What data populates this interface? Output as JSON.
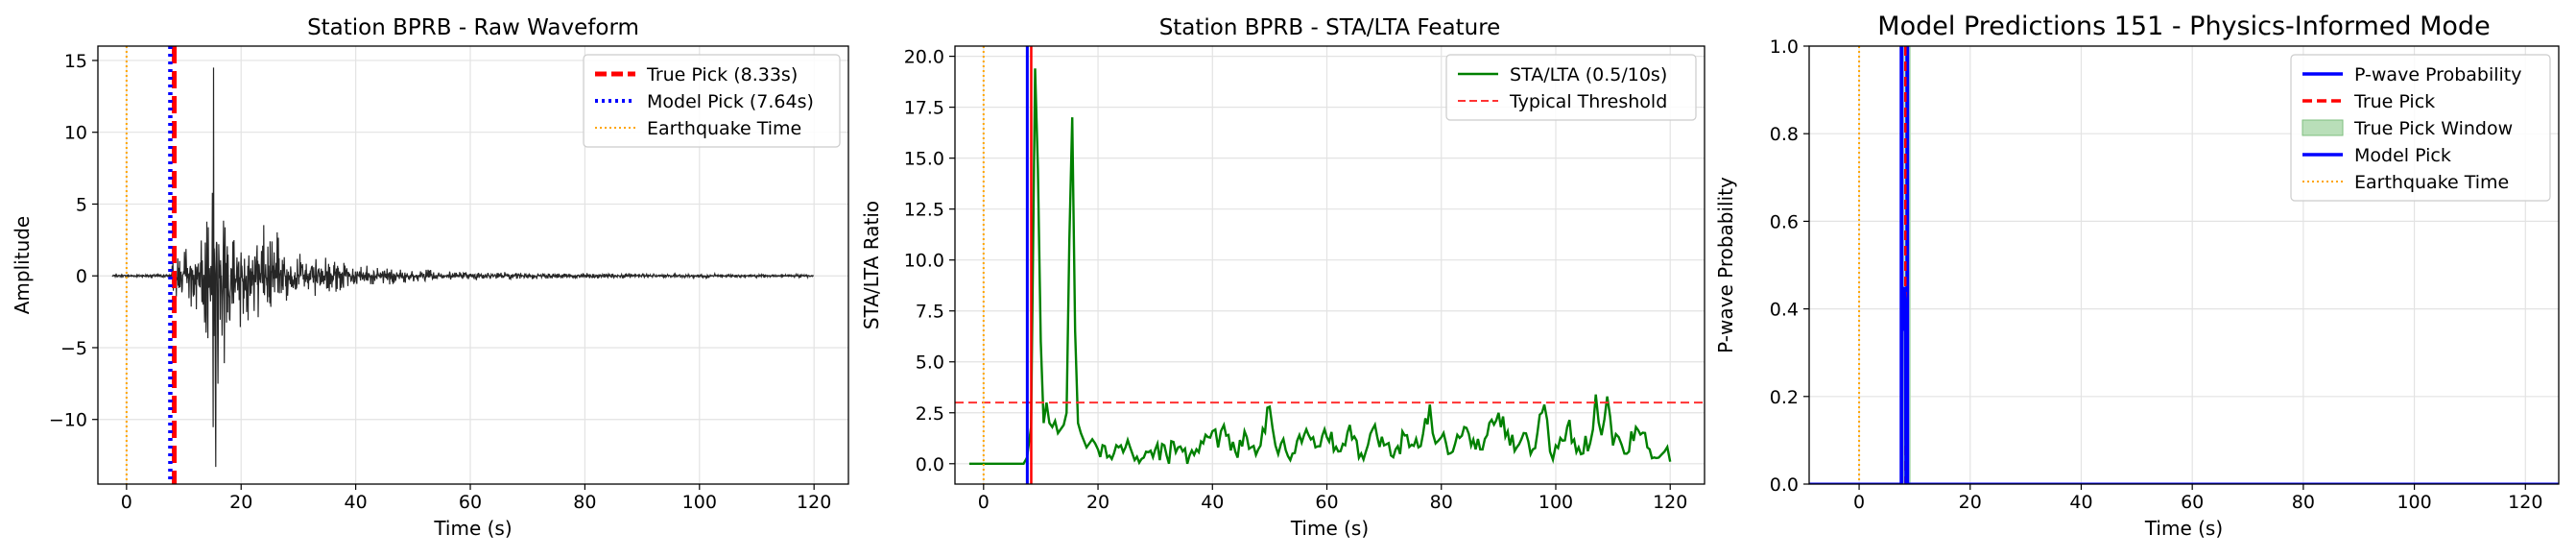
{
  "colors": {
    "waveform": "#262626",
    "true_pick": "#ff0000",
    "model_pick_dotted": "#0000ff",
    "model_pick": "#0000ff",
    "earthquake": "#ffa500",
    "sta_lta": "#008000",
    "threshold": "#ff3333",
    "pwave": "#0000ff",
    "window_fill": "#b9dfb9",
    "grid": "#e3e3e3"
  },
  "chart_data": [
    {
      "type": "line",
      "title": "Station BPRB - Raw Waveform",
      "xlabel": "Time (s)",
      "ylabel": "Amplitude",
      "xlim": [
        -5,
        126
      ],
      "ylim": [
        -14.5,
        16
      ],
      "xticks": [
        0,
        20,
        40,
        60,
        80,
        100,
        120
      ],
      "yticks": [
        -10,
        -5,
        0,
        5,
        10,
        15
      ],
      "grid": true,
      "legend_position": "top-right",
      "legend": [
        "True Pick (8.33s)",
        "Model Pick (7.64s)",
        "Earthquake Time"
      ],
      "signal_start": -2.5,
      "signal_end": 120,
      "series": [
        {
          "name": "True Pick (8.33s)",
          "kind": "vline",
          "x": 8.33
        },
        {
          "name": "Model Pick (7.64s)",
          "kind": "vline",
          "x": 7.64
        },
        {
          "name": "Earthquake Time",
          "kind": "vline",
          "x": 0
        },
        {
          "kind": "waveform",
          "envelope": [
            [
              -2.5,
              0.05
            ],
            [
              7.6,
              0.1
            ],
            [
              8.3,
              1.5
            ],
            [
              12,
              2.8
            ],
            [
              14,
              4.5
            ],
            [
              15.2,
              14.5
            ],
            [
              16,
              9
            ],
            [
              18,
              6
            ],
            [
              20,
              4.5
            ],
            [
              25,
              3.4
            ],
            [
              30,
              2.2
            ],
            [
              35,
              1.5
            ],
            [
              40,
              1.0
            ],
            [
              50,
              0.6
            ],
            [
              60,
              0.35
            ],
            [
              80,
              0.2
            ],
            [
              120,
              0.12
            ]
          ],
          "min_spike": [
            15.6,
            -13.3
          ]
        }
      ]
    },
    {
      "type": "line",
      "title": "Station BPRB - STA/LTA Feature",
      "xlabel": "Time (s)",
      "ylabel": "STA/LTA Ratio",
      "xlim": [
        -5,
        126
      ],
      "ylim": [
        -1,
        20.5
      ],
      "xticks": [
        0,
        20,
        40,
        60,
        80,
        100,
        120
      ],
      "yticks": [
        0.0,
        2.5,
        5.0,
        7.5,
        10.0,
        12.5,
        15.0,
        17.5,
        20.0
      ],
      "ytick_labels": [
        "0.0",
        "2.5",
        "5.0",
        "7.5",
        "10.0",
        "12.5",
        "15.0",
        "17.5",
        "20.0"
      ],
      "grid": true,
      "legend_position": "top-right",
      "legend": [
        "STA/LTA (0.5/10s)",
        "Typical Threshold"
      ],
      "series": [
        {
          "name": "STA/LTA (0.5/10s)",
          "x": [
            -2.5,
            7,
            7.6,
            8.3,
            9,
            9.5,
            10,
            10.5,
            11,
            11.5,
            12,
            12.5,
            13,
            14,
            14.5,
            15,
            15.5,
            16,
            16.5,
            17,
            18,
            19,
            20,
            22,
            24,
            26,
            28,
            30,
            32,
            34,
            36,
            38,
            40,
            41,
            42,
            44,
            46,
            48,
            50,
            51,
            52,
            54,
            56,
            58,
            60,
            62,
            64,
            66,
            68,
            70,
            72,
            74,
            76,
            78,
            79,
            80,
            82,
            84,
            86,
            88,
            90,
            92,
            94,
            96,
            98,
            99,
            100,
            102,
            104,
            106,
            107,
            108,
            109,
            110,
            111,
            112,
            114,
            116,
            118,
            119,
            120
          ],
          "y": [
            0,
            0,
            0.3,
            1.8,
            19.4,
            14.5,
            6,
            2,
            3,
            2,
            1.8,
            2.1,
            1.5,
            1.9,
            2.5,
            11,
            17,
            6.5,
            2,
            1.5,
            0.8,
            1.2,
            0.7,
            0.4,
            0.9,
            0.5,
            0.3,
            0.7,
            0.4,
            0.8,
            0.4,
            1.1,
            1.6,
            0.8,
            1.9,
            0.6,
            1.3,
            0.7,
            2.8,
            0.9,
            1.0,
            0.5,
            1.4,
            0.8,
            1.3,
            0.6,
            1.9,
            0.5,
            1.7,
            0.9,
            0.7,
            1.4,
            0.8,
            2.9,
            1.0,
            1.3,
            0.6,
            1.8,
            0.7,
            1.4,
            2.5,
            0.9,
            1.2,
            0.7,
            2.9,
            0.6,
            0.9,
            1.8,
            0.8,
            1.0,
            3.4,
            1.4,
            3.3,
            0.9,
            1.3,
            0.5,
            1.8,
            0.8,
            0.3,
            0.6,
            0.1
          ]
        },
        {
          "name": "Typical Threshold",
          "kind": "hline",
          "y": 3.0
        },
        {
          "kind": "vline",
          "x": 0,
          "role": "earthquake"
        },
        {
          "kind": "vline",
          "x": 8.33,
          "role": "true_pick"
        },
        {
          "kind": "vline",
          "x": 7.64,
          "role": "model_pick"
        }
      ]
    },
    {
      "type": "line",
      "title": "Model Predictions 151 - Physics-Informed Mode",
      "xlabel": "Time (s)",
      "ylabel": "P-wave Probability",
      "xlim": [
        -9,
        126
      ],
      "ylim": [
        0,
        1
      ],
      "xticks": [
        0,
        20,
        40,
        60,
        80,
        100,
        120
      ],
      "yticks": [
        0.0,
        0.2,
        0.4,
        0.6,
        0.8,
        1.0
      ],
      "ytick_labels": [
        "0.0",
        "0.2",
        "0.4",
        "0.6",
        "0.8",
        "1.0"
      ],
      "grid": true,
      "legend_position": "top-right",
      "legend": [
        "P-wave Probability",
        "True Pick",
        "True Pick Window",
        "Model Pick",
        "Earthquake Time"
      ],
      "series": [
        {
          "name": "P-wave Probability",
          "x": [
            -9,
            7.6,
            7.7,
            7.9,
            8.1,
            8.3,
            8.4,
            126
          ],
          "y": [
            0,
            0,
            0.4,
            0.35,
            0.45,
            0.42,
            0,
            0
          ]
        },
        {
          "name": "True Pick",
          "kind": "vline",
          "x": 8.33
        },
        {
          "name": "True Pick Window",
          "kind": "band",
          "x": [
            7.33,
            9.33
          ]
        },
        {
          "name": "Model Pick",
          "kind": "vline",
          "x": 7.64
        },
        {
          "name": "Earthquake Time",
          "kind": "vline",
          "x": 0
        }
      ]
    }
  ]
}
